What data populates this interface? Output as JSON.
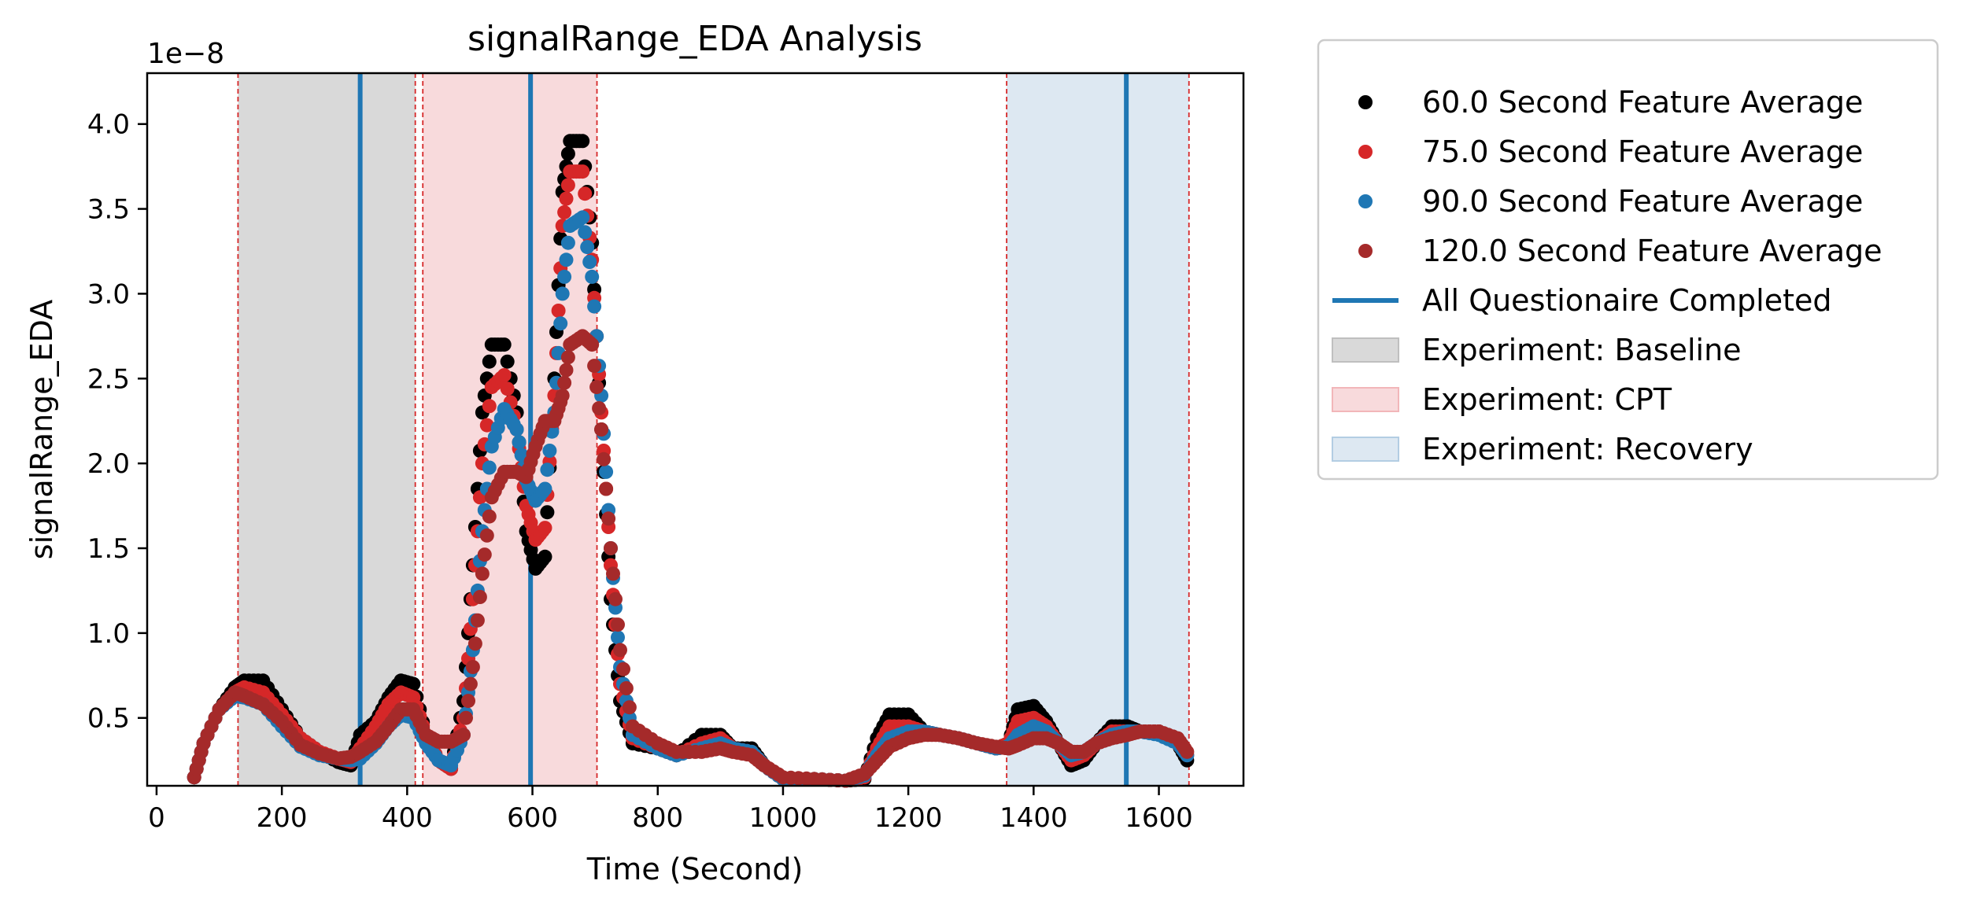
{
  "chart_data": {
    "type": "scatter",
    "title": "signalRange_EDA Analysis",
    "xlabel": "Time (Second)",
    "ylabel": "signalRange_EDA",
    "y_offset_label": "1e−8",
    "xlim": [
      -15,
      1735
    ],
    "ylim": [
      0.1,
      4.3
    ],
    "x_ticks": [
      0,
      200,
      400,
      600,
      800,
      1000,
      1200,
      1400,
      1600
    ],
    "x_tick_labels": [
      "0",
      "200",
      "400",
      "600",
      "800",
      "1000",
      "1200",
      "1400",
      "1600"
    ],
    "y_ticks": [
      0.5,
      1.0,
      1.5,
      2.0,
      2.5,
      3.0,
      3.5,
      4.0
    ],
    "y_tick_labels": [
      "0.5",
      "1.0",
      "1.5",
      "2.0",
      "2.5",
      "3.0",
      "3.5",
      "4.0"
    ],
    "grid": false,
    "legend_position": "outside-right",
    "series": [
      {
        "name": "60.0 Second Feature Average",
        "color": "#000000",
        "points": [
          [
            60,
            0.15
          ],
          [
            75,
            0.35
          ],
          [
            100,
            0.55
          ],
          [
            125,
            0.68
          ],
          [
            140,
            0.72
          ],
          [
            170,
            0.72
          ],
          [
            200,
            0.55
          ],
          [
            230,
            0.38
          ],
          [
            260,
            0.3
          ],
          [
            290,
            0.24
          ],
          [
            310,
            0.22
          ],
          [
            325,
            0.4
          ],
          [
            350,
            0.48
          ],
          [
            370,
            0.62
          ],
          [
            390,
            0.72
          ],
          [
            410,
            0.7
          ],
          [
            430,
            0.4
          ],
          [
            450,
            0.25
          ],
          [
            470,
            0.2
          ],
          [
            490,
            0.6
          ],
          [
            505,
            1.4
          ],
          [
            520,
            2.3
          ],
          [
            535,
            2.7
          ],
          [
            555,
            2.7
          ],
          [
            575,
            2.3
          ],
          [
            590,
            1.6
          ],
          [
            605,
            1.38
          ],
          [
            620,
            1.45
          ],
          [
            635,
            2.5
          ],
          [
            648,
            3.6
          ],
          [
            660,
            3.9
          ],
          [
            680,
            3.9
          ],
          [
            695,
            3.3
          ],
          [
            710,
            2.2
          ],
          [
            725,
            1.2
          ],
          [
            740,
            0.6
          ],
          [
            760,
            0.35
          ],
          [
            800,
            0.32
          ],
          [
            830,
            0.28
          ],
          [
            870,
            0.4
          ],
          [
            900,
            0.4
          ],
          [
            920,
            0.32
          ],
          [
            950,
            0.32
          ],
          [
            970,
            0.22
          ],
          [
            1000,
            0.14
          ],
          [
            1050,
            0.14
          ],
          [
            1100,
            0.13
          ],
          [
            1130,
            0.14
          ],
          [
            1150,
            0.38
          ],
          [
            1170,
            0.52
          ],
          [
            1200,
            0.52
          ],
          [
            1225,
            0.42
          ],
          [
            1250,
            0.4
          ],
          [
            1280,
            0.38
          ],
          [
            1310,
            0.35
          ],
          [
            1340,
            0.32
          ],
          [
            1360,
            0.35
          ],
          [
            1375,
            0.55
          ],
          [
            1400,
            0.57
          ],
          [
            1420,
            0.48
          ],
          [
            1440,
            0.35
          ],
          [
            1460,
            0.22
          ],
          [
            1480,
            0.25
          ],
          [
            1500,
            0.35
          ],
          [
            1525,
            0.45
          ],
          [
            1550,
            0.45
          ],
          [
            1570,
            0.42
          ],
          [
            1600,
            0.42
          ],
          [
            1630,
            0.35
          ],
          [
            1645,
            0.25
          ]
        ]
      },
      {
        "name": "75.0 Second Feature Average",
        "color": "#d62728",
        "points": [
          [
            60,
            0.15
          ],
          [
            75,
            0.35
          ],
          [
            100,
            0.55
          ],
          [
            125,
            0.65
          ],
          [
            140,
            0.68
          ],
          [
            170,
            0.65
          ],
          [
            200,
            0.52
          ],
          [
            230,
            0.38
          ],
          [
            260,
            0.3
          ],
          [
            290,
            0.26
          ],
          [
            310,
            0.24
          ],
          [
            325,
            0.32
          ],
          [
            350,
            0.45
          ],
          [
            370,
            0.58
          ],
          [
            390,
            0.65
          ],
          [
            410,
            0.62
          ],
          [
            430,
            0.4
          ],
          [
            450,
            0.25
          ],
          [
            470,
            0.2
          ],
          [
            490,
            0.5
          ],
          [
            505,
            1.2
          ],
          [
            520,
            2.0
          ],
          [
            535,
            2.45
          ],
          [
            555,
            2.52
          ],
          [
            575,
            2.2
          ],
          [
            590,
            1.75
          ],
          [
            605,
            1.55
          ],
          [
            620,
            1.62
          ],
          [
            635,
            2.4
          ],
          [
            648,
            3.4
          ],
          [
            660,
            3.72
          ],
          [
            680,
            3.72
          ],
          [
            695,
            3.2
          ],
          [
            710,
            2.3
          ],
          [
            725,
            1.4
          ],
          [
            740,
            0.7
          ],
          [
            760,
            0.38
          ],
          [
            800,
            0.32
          ],
          [
            830,
            0.28
          ],
          [
            870,
            0.35
          ],
          [
            900,
            0.38
          ],
          [
            920,
            0.32
          ],
          [
            950,
            0.3
          ],
          [
            970,
            0.22
          ],
          [
            1000,
            0.14
          ],
          [
            1050,
            0.14
          ],
          [
            1100,
            0.13
          ],
          [
            1130,
            0.15
          ],
          [
            1150,
            0.32
          ],
          [
            1170,
            0.45
          ],
          [
            1200,
            0.45
          ],
          [
            1225,
            0.42
          ],
          [
            1250,
            0.4
          ],
          [
            1280,
            0.38
          ],
          [
            1310,
            0.35
          ],
          [
            1340,
            0.32
          ],
          [
            1360,
            0.35
          ],
          [
            1375,
            0.48
          ],
          [
            1400,
            0.5
          ],
          [
            1420,
            0.45
          ],
          [
            1440,
            0.35
          ],
          [
            1460,
            0.25
          ],
          [
            1480,
            0.28
          ],
          [
            1500,
            0.35
          ],
          [
            1525,
            0.42
          ],
          [
            1550,
            0.42
          ],
          [
            1570,
            0.42
          ],
          [
            1600,
            0.42
          ],
          [
            1630,
            0.35
          ],
          [
            1645,
            0.28
          ]
        ]
      },
      {
        "name": "90.0 Second Feature Average",
        "color": "#1f77b4",
        "points": [
          [
            60,
            0.15
          ],
          [
            75,
            0.35
          ],
          [
            100,
            0.55
          ],
          [
            125,
            0.63
          ],
          [
            140,
            0.62
          ],
          [
            170,
            0.58
          ],
          [
            200,
            0.45
          ],
          [
            230,
            0.33
          ],
          [
            260,
            0.28
          ],
          [
            290,
            0.26
          ],
          [
            310,
            0.25
          ],
          [
            325,
            0.26
          ],
          [
            350,
            0.35
          ],
          [
            370,
            0.45
          ],
          [
            390,
            0.52
          ],
          [
            410,
            0.5
          ],
          [
            430,
            0.35
          ],
          [
            450,
            0.25
          ],
          [
            470,
            0.22
          ],
          [
            490,
            0.4
          ],
          [
            505,
            0.9
          ],
          [
            520,
            1.6
          ],
          [
            535,
            2.1
          ],
          [
            555,
            2.32
          ],
          [
            575,
            2.2
          ],
          [
            590,
            1.9
          ],
          [
            605,
            1.78
          ],
          [
            620,
            1.85
          ],
          [
            635,
            2.3
          ],
          [
            648,
            3.0
          ],
          [
            660,
            3.4
          ],
          [
            680,
            3.45
          ],
          [
            695,
            3.1
          ],
          [
            710,
            2.4
          ],
          [
            725,
            1.5
          ],
          [
            740,
            0.8
          ],
          [
            760,
            0.4
          ],
          [
            800,
            0.32
          ],
          [
            830,
            0.28
          ],
          [
            870,
            0.32
          ],
          [
            900,
            0.35
          ],
          [
            920,
            0.32
          ],
          [
            950,
            0.3
          ],
          [
            970,
            0.22
          ],
          [
            1000,
            0.14
          ],
          [
            1050,
            0.14
          ],
          [
            1100,
            0.13
          ],
          [
            1130,
            0.16
          ],
          [
            1150,
            0.28
          ],
          [
            1170,
            0.38
          ],
          [
            1200,
            0.42
          ],
          [
            1225,
            0.42
          ],
          [
            1250,
            0.4
          ],
          [
            1280,
            0.38
          ],
          [
            1310,
            0.35
          ],
          [
            1340,
            0.32
          ],
          [
            1360,
            0.33
          ],
          [
            1375,
            0.4
          ],
          [
            1400,
            0.45
          ],
          [
            1420,
            0.42
          ],
          [
            1440,
            0.35
          ],
          [
            1460,
            0.28
          ],
          [
            1480,
            0.3
          ],
          [
            1500,
            0.35
          ],
          [
            1525,
            0.4
          ],
          [
            1550,
            0.42
          ],
          [
            1570,
            0.42
          ],
          [
            1600,
            0.4
          ],
          [
            1630,
            0.35
          ],
          [
            1645,
            0.28
          ]
        ]
      },
      {
        "name": "120.0 Second Feature Average",
        "color": "#a52a2a",
        "points": [
          [
            60,
            0.15
          ],
          [
            75,
            0.35
          ],
          [
            100,
            0.55
          ],
          [
            125,
            0.65
          ],
          [
            140,
            0.63
          ],
          [
            170,
            0.58
          ],
          [
            200,
            0.48
          ],
          [
            230,
            0.34
          ],
          [
            260,
            0.29
          ],
          [
            290,
            0.26
          ],
          [
            310,
            0.27
          ],
          [
            325,
            0.3
          ],
          [
            350,
            0.36
          ],
          [
            370,
            0.45
          ],
          [
            390,
            0.55
          ],
          [
            410,
            0.55
          ],
          [
            430,
            0.4
          ],
          [
            450,
            0.36
          ],
          [
            470,
            0.36
          ],
          [
            490,
            0.4
          ],
          [
            505,
            0.8
          ],
          [
            520,
            1.35
          ],
          [
            535,
            1.8
          ],
          [
            555,
            1.95
          ],
          [
            575,
            1.95
          ],
          [
            590,
            1.92
          ],
          [
            605,
            2.1
          ],
          [
            620,
            2.25
          ],
          [
            635,
            2.25
          ],
          [
            648,
            2.4
          ],
          [
            660,
            2.7
          ],
          [
            680,
            2.75
          ],
          [
            695,
            2.7
          ],
          [
            710,
            2.2
          ],
          [
            725,
            1.5
          ],
          [
            740,
            0.9
          ],
          [
            760,
            0.45
          ],
          [
            800,
            0.35
          ],
          [
            830,
            0.3
          ],
          [
            870,
            0.3
          ],
          [
            900,
            0.32
          ],
          [
            920,
            0.3
          ],
          [
            950,
            0.28
          ],
          [
            970,
            0.22
          ],
          [
            1000,
            0.15
          ],
          [
            1050,
            0.14
          ],
          [
            1100,
            0.13
          ],
          [
            1130,
            0.17
          ],
          [
            1150,
            0.25
          ],
          [
            1170,
            0.33
          ],
          [
            1200,
            0.38
          ],
          [
            1225,
            0.4
          ],
          [
            1250,
            0.4
          ],
          [
            1280,
            0.38
          ],
          [
            1310,
            0.35
          ],
          [
            1340,
            0.33
          ],
          [
            1360,
            0.32
          ],
          [
            1375,
            0.34
          ],
          [
            1400,
            0.38
          ],
          [
            1420,
            0.38
          ],
          [
            1440,
            0.35
          ],
          [
            1460,
            0.3
          ],
          [
            1480,
            0.3
          ],
          [
            1500,
            0.35
          ],
          [
            1525,
            0.38
          ],
          [
            1550,
            0.4
          ],
          [
            1570,
            0.42
          ],
          [
            1600,
            0.42
          ],
          [
            1630,
            0.38
          ],
          [
            1645,
            0.3
          ]
        ]
      }
    ],
    "vertical_lines": {
      "name": "All Questionaire Completed",
      "color": "#1f77b4",
      "x": [
        325,
        597,
        1548
      ]
    },
    "regions": [
      {
        "name": "Experiment: Baseline",
        "color": "#bfbfbf",
        "opacity": 0.6,
        "x": [
          130,
          413
        ]
      },
      {
        "name": "Experiment: CPT",
        "color": "#f2b6b9",
        "opacity": 0.5,
        "x": [
          425,
          703
        ]
      },
      {
        "name": "Experiment: Recovery",
        "color": "#b3cde3",
        "opacity": 0.45,
        "x": [
          1357,
          1648
        ]
      }
    ],
    "dashed_boundaries": {
      "color": "#d62728",
      "x": [
        130,
        413,
        425,
        703,
        1357,
        1648
      ]
    }
  },
  "legend": {
    "items": [
      {
        "kind": "marker",
        "label": "60.0 Second Feature Average",
        "color": "#000000"
      },
      {
        "kind": "marker",
        "label": "75.0 Second Feature Average",
        "color": "#d62728"
      },
      {
        "kind": "marker",
        "label": "90.0 Second Feature Average",
        "color": "#1f77b4"
      },
      {
        "kind": "marker",
        "label": "120.0 Second Feature Average",
        "color": "#a52a2a"
      },
      {
        "kind": "line",
        "label": "All Questionaire Completed",
        "color": "#1f77b4"
      },
      {
        "kind": "patch",
        "label": "Experiment: Baseline",
        "color": "#bfbfbf",
        "opacity": 0.6
      },
      {
        "kind": "patch",
        "label": "Experiment: CPT",
        "color": "#f2b6b9",
        "opacity": 0.5
      },
      {
        "kind": "patch",
        "label": "Experiment: Recovery",
        "color": "#b3cde3",
        "opacity": 0.45
      }
    ]
  }
}
